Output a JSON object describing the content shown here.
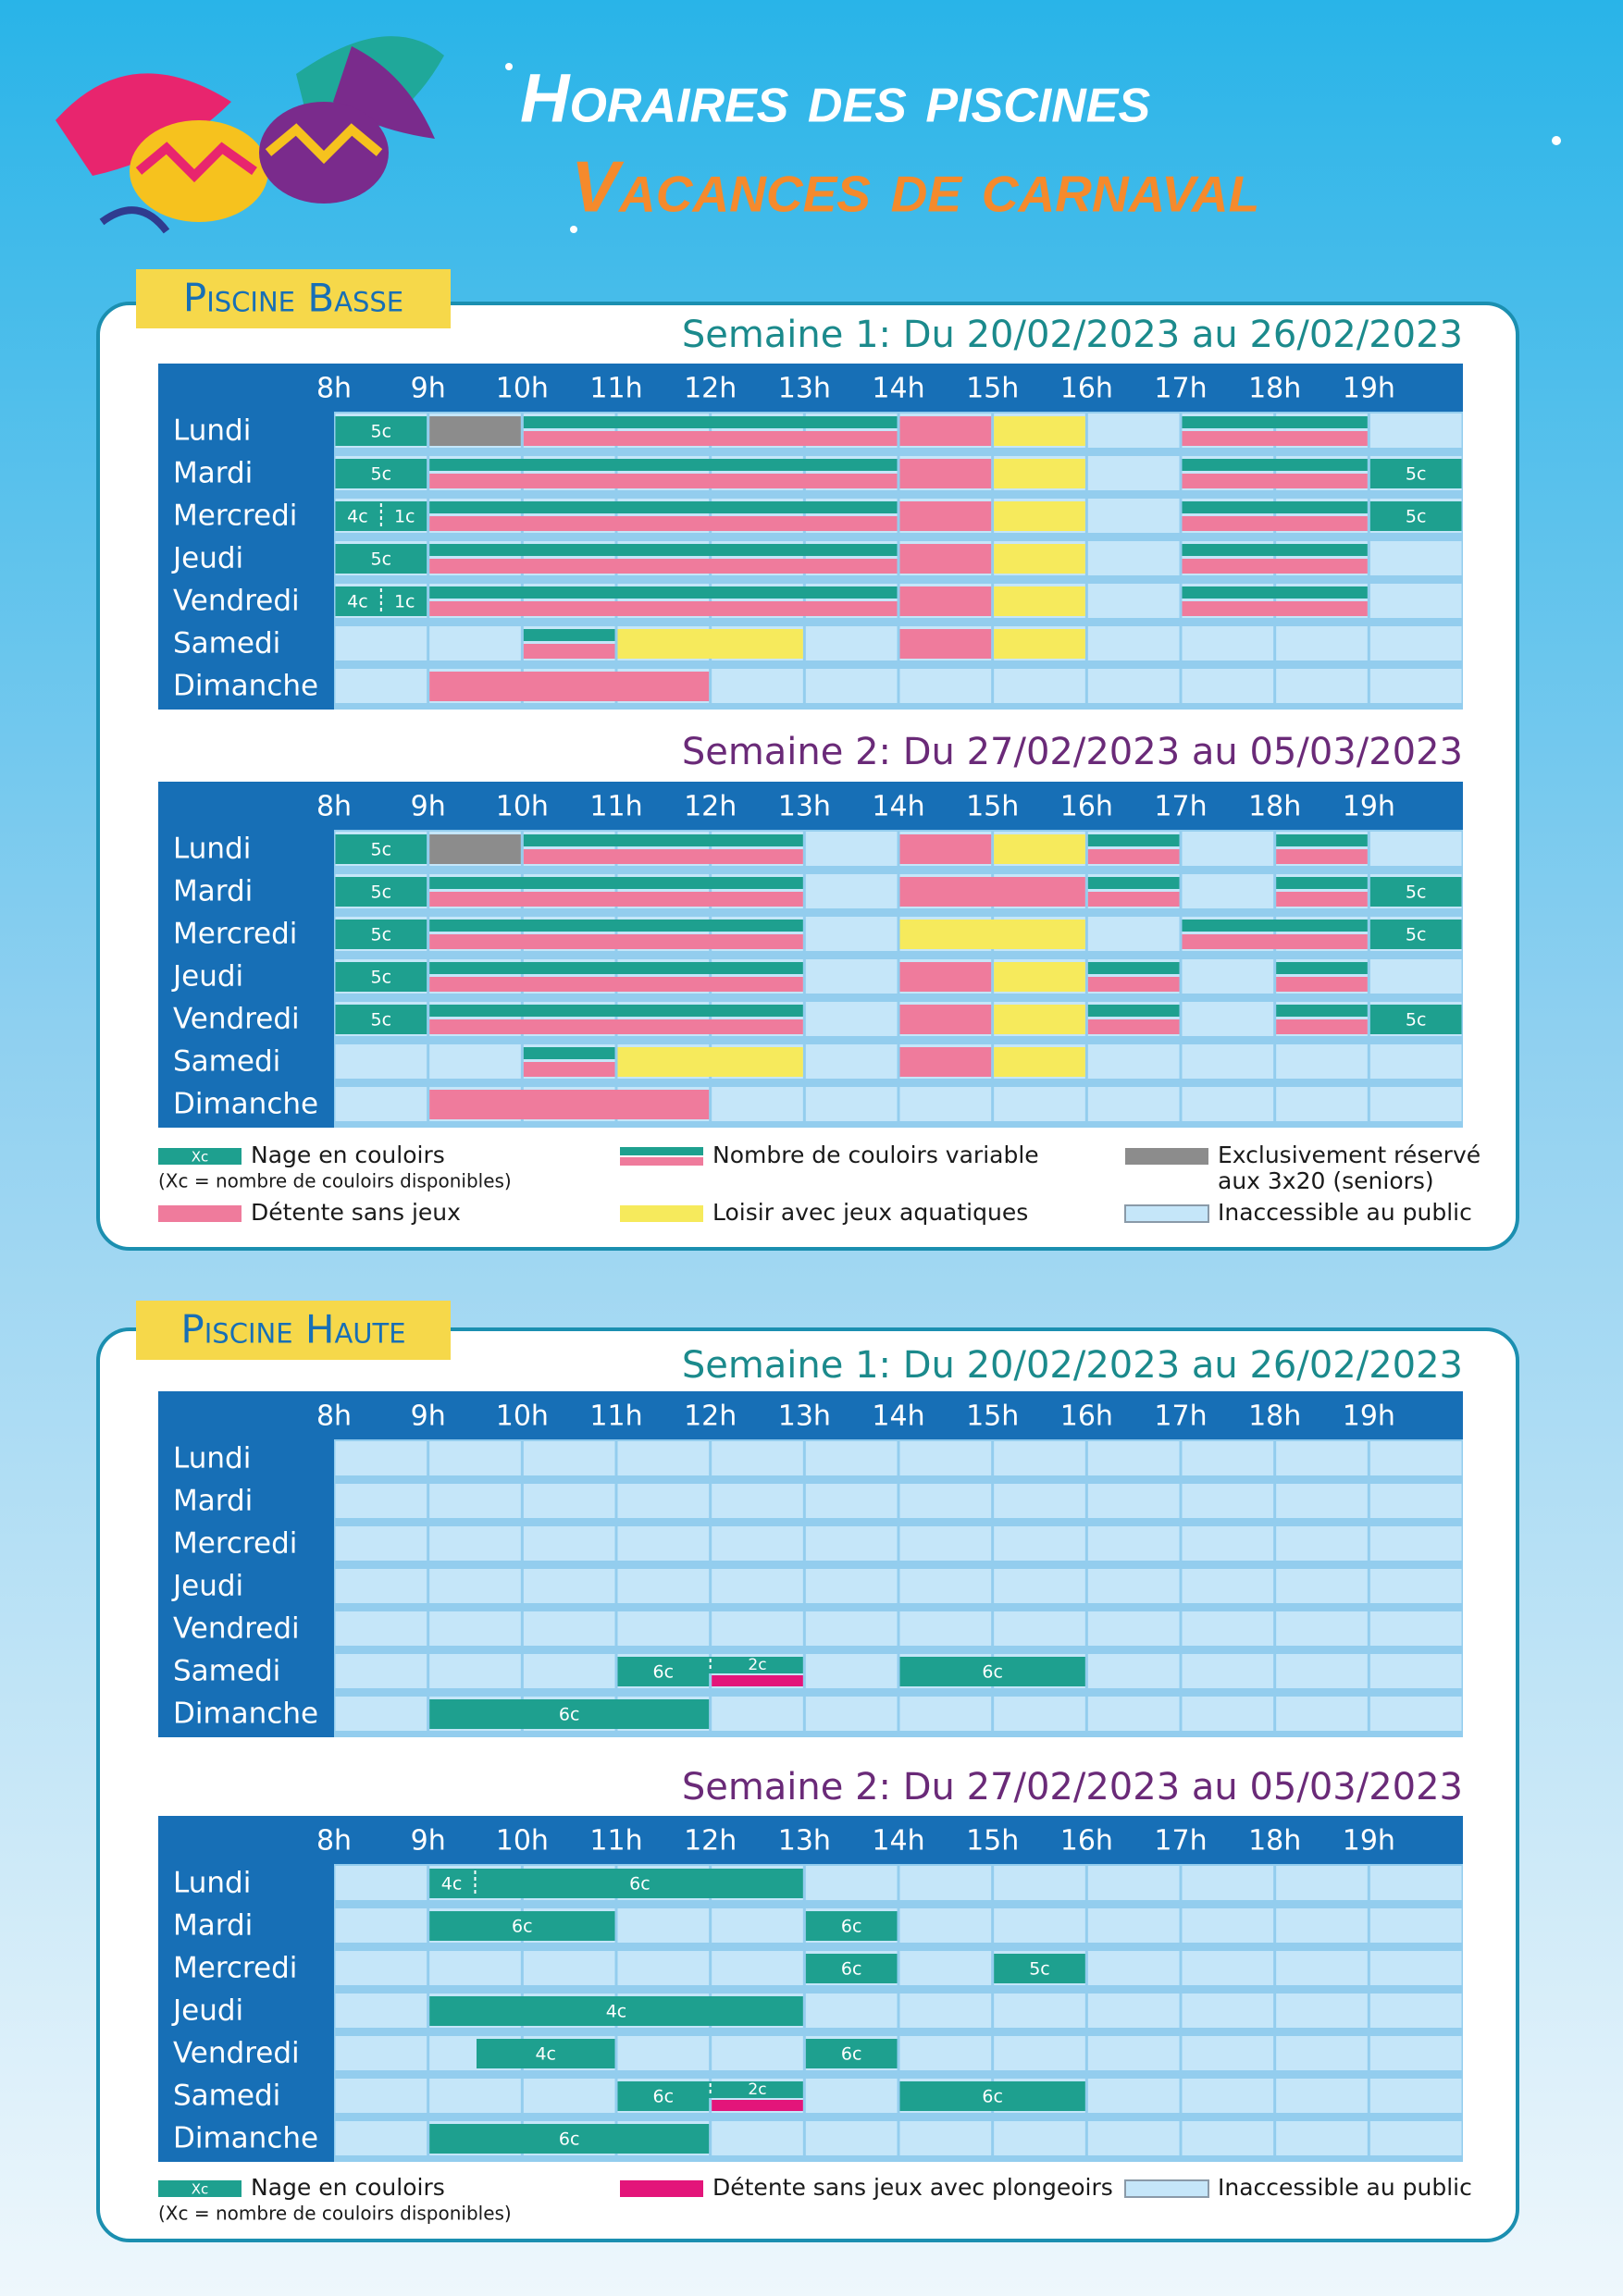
{
  "header": {
    "title": "Horaires des piscines",
    "subtitle": "Vacances de carnaval"
  },
  "pools": [
    {
      "name": "Piscine Basse",
      "legend": [
        {
          "type": "lanes",
          "label": "Nage en couloirs",
          "note": "(Xc = nombre de couloirs disponibles)",
          "swatch": "Xc",
          "color": "#1ea08f"
        },
        {
          "type": "variable",
          "label": "Nombre de couloirs variable",
          "colors": [
            "#1ea08f",
            "#ef7b9c"
          ]
        },
        {
          "type": "seniors",
          "label": "Exclusivement réservé",
          "note": "aux 3x20 (seniors)",
          "color": "#8c8c8c"
        },
        {
          "type": "relax",
          "label": "Détente sans jeux",
          "color": "#ef7b9c"
        },
        {
          "type": "leisure",
          "label": "Loisir avec jeux aquatiques",
          "color": "#f6ea5c"
        },
        {
          "type": "closed",
          "label": "Inaccessible au public",
          "color": "#c5e6f9"
        }
      ],
      "weeks": [
        {
          "heading": "Semaine 1: Du 20/02/2023 au 26/02/2023",
          "color": "#1b8a8c",
          "hours": [
            "8h",
            "9h",
            "10h",
            "11h",
            "12h",
            "13h",
            "14h",
            "15h",
            "16h",
            "17h",
            "18h",
            "19h"
          ],
          "days": [
            {
              "name": "Lundi",
              "slots": [
                {
                  "start": 8,
                  "end": 9,
                  "type": "lanes",
                  "label": "5c"
                },
                {
                  "start": 9,
                  "end": 10,
                  "type": "seniors"
                },
                {
                  "start": 10,
                  "end": 14,
                  "type": "variable"
                },
                {
                  "start": 14,
                  "end": 15,
                  "type": "relax"
                },
                {
                  "start": 15,
                  "end": 16,
                  "type": "leisure"
                },
                {
                  "start": 17,
                  "end": 19,
                  "type": "variable"
                }
              ]
            },
            {
              "name": "Mardi",
              "slots": [
                {
                  "start": 8,
                  "end": 9,
                  "type": "lanes",
                  "label": "5c"
                },
                {
                  "start": 9,
                  "end": 14,
                  "type": "variable"
                },
                {
                  "start": 14,
                  "end": 15,
                  "type": "relax"
                },
                {
                  "start": 15,
                  "end": 16,
                  "type": "leisure"
                },
                {
                  "start": 17,
                  "end": 19,
                  "type": "variable"
                },
                {
                  "start": 19,
                  "end": 20,
                  "type": "lanes",
                  "label": "5c"
                }
              ]
            },
            {
              "name": "Mercredi",
              "slots": [
                {
                  "start": 8,
                  "end": 8.5,
                  "type": "lanes",
                  "label": "4c"
                },
                {
                  "start": 8.5,
                  "end": 9,
                  "type": "lanes",
                  "label": "1c"
                },
                {
                  "start": 9,
                  "end": 14,
                  "type": "variable"
                },
                {
                  "start": 14,
                  "end": 15,
                  "type": "relax"
                },
                {
                  "start": 15,
                  "end": 16,
                  "type": "leisure"
                },
                {
                  "start": 17,
                  "end": 19,
                  "type": "variable"
                },
                {
                  "start": 19,
                  "end": 20,
                  "type": "lanes",
                  "label": "5c"
                }
              ]
            },
            {
              "name": "Jeudi",
              "slots": [
                {
                  "start": 8,
                  "end": 9,
                  "type": "lanes",
                  "label": "5c"
                },
                {
                  "start": 9,
                  "end": 14,
                  "type": "variable"
                },
                {
                  "start": 14,
                  "end": 15,
                  "type": "relax"
                },
                {
                  "start": 15,
                  "end": 16,
                  "type": "leisure"
                },
                {
                  "start": 17,
                  "end": 19,
                  "type": "variable"
                }
              ]
            },
            {
              "name": "Vendredi",
              "slots": [
                {
                  "start": 8,
                  "end": 8.5,
                  "type": "lanes",
                  "label": "4c"
                },
                {
                  "start": 8.5,
                  "end": 9,
                  "type": "lanes",
                  "label": "1c"
                },
                {
                  "start": 9,
                  "end": 14,
                  "type": "variable"
                },
                {
                  "start": 14,
                  "end": 15,
                  "type": "relax"
                },
                {
                  "start": 15,
                  "end": 16,
                  "type": "leisure"
                },
                {
                  "start": 17,
                  "end": 19,
                  "type": "variable"
                }
              ]
            },
            {
              "name": "Samedi",
              "slots": [
                {
                  "start": 10,
                  "end": 11,
                  "type": "variable"
                },
                {
                  "start": 11,
                  "end": 13,
                  "type": "leisure"
                },
                {
                  "start": 14,
                  "end": 15,
                  "type": "relax"
                },
                {
                  "start": 15,
                  "end": 16,
                  "type": "leisure"
                }
              ]
            },
            {
              "name": "Dimanche",
              "slots": [
                {
                  "start": 9,
                  "end": 12,
                  "type": "relax"
                }
              ]
            }
          ]
        },
        {
          "heading": "Semaine 2: Du 27/02/2023 au 05/03/2023",
          "color": "#6a2a78",
          "hours": [
            "8h",
            "9h",
            "10h",
            "11h",
            "12h",
            "13h",
            "14h",
            "15h",
            "16h",
            "17h",
            "18h",
            "19h"
          ],
          "days": [
            {
              "name": "Lundi",
              "slots": [
                {
                  "start": 8,
                  "end": 9,
                  "type": "lanes",
                  "label": "5c"
                },
                {
                  "start": 9,
                  "end": 10,
                  "type": "seniors"
                },
                {
                  "start": 10,
                  "end": 13,
                  "type": "variable"
                },
                {
                  "start": 14,
                  "end": 15,
                  "type": "relax"
                },
                {
                  "start": 15,
                  "end": 16,
                  "type": "leisure"
                },
                {
                  "start": 16,
                  "end": 17,
                  "type": "variable"
                },
                {
                  "start": 18,
                  "end": 19,
                  "type": "variable"
                }
              ]
            },
            {
              "name": "Mardi",
              "slots": [
                {
                  "start": 8,
                  "end": 9,
                  "type": "lanes",
                  "label": "5c"
                },
                {
                  "start": 9,
                  "end": 13,
                  "type": "variable"
                },
                {
                  "start": 14,
                  "end": 16,
                  "type": "relax"
                },
                {
                  "start": 16,
                  "end": 17,
                  "type": "variable"
                },
                {
                  "start": 18,
                  "end": 19,
                  "type": "variable"
                },
                {
                  "start": 19,
                  "end": 20,
                  "type": "lanes",
                  "label": "5c"
                }
              ]
            },
            {
              "name": "Mercredi",
              "slots": [
                {
                  "start": 8,
                  "end": 9,
                  "type": "lanes",
                  "label": "5c"
                },
                {
                  "start": 9,
                  "end": 13,
                  "type": "variable"
                },
                {
                  "start": 14,
                  "end": 16,
                  "type": "leisure"
                },
                {
                  "start": 17,
                  "end": 19,
                  "type": "variable"
                },
                {
                  "start": 19,
                  "end": 20,
                  "type": "lanes",
                  "label": "5c"
                }
              ]
            },
            {
              "name": "Jeudi",
              "slots": [
                {
                  "start": 8,
                  "end": 9,
                  "type": "lanes",
                  "label": "5c"
                },
                {
                  "start": 9,
                  "end": 13,
                  "type": "variable"
                },
                {
                  "start": 14,
                  "end": 15,
                  "type": "relax"
                },
                {
                  "start": 15,
                  "end": 16,
                  "type": "leisure"
                },
                {
                  "start": 16,
                  "end": 17,
                  "type": "variable"
                },
                {
                  "start": 18,
                  "end": 19,
                  "type": "variable"
                }
              ]
            },
            {
              "name": "Vendredi",
              "slots": [
                {
                  "start": 8,
                  "end": 9,
                  "type": "lanes",
                  "label": "5c"
                },
                {
                  "start": 9,
                  "end": 13,
                  "type": "variable"
                },
                {
                  "start": 14,
                  "end": 15,
                  "type": "relax"
                },
                {
                  "start": 15,
                  "end": 16,
                  "type": "leisure"
                },
                {
                  "start": 16,
                  "end": 17,
                  "type": "variable"
                },
                {
                  "start": 18,
                  "end": 19,
                  "type": "variable"
                },
                {
                  "start": 19,
                  "end": 20,
                  "type": "lanes",
                  "label": "5c"
                }
              ]
            },
            {
              "name": "Samedi",
              "slots": [
                {
                  "start": 10,
                  "end": 11,
                  "type": "variable"
                },
                {
                  "start": 11,
                  "end": 13,
                  "type": "leisure"
                },
                {
                  "start": 14,
                  "end": 15,
                  "type": "relax"
                },
                {
                  "start": 15,
                  "end": 16,
                  "type": "leisure"
                }
              ]
            },
            {
              "name": "Dimanche",
              "slots": [
                {
                  "start": 9,
                  "end": 12,
                  "type": "relax"
                }
              ]
            }
          ]
        }
      ]
    },
    {
      "name": "Piscine Haute",
      "legend": [
        {
          "type": "lanes",
          "label": "Nage en couloirs",
          "note": "(Xc = nombre de couloirs disponibles)",
          "swatch": "Xc",
          "color": "#1ea08f"
        },
        {
          "type": "diving",
          "label": "Détente sans jeux avec plongeoirs",
          "color": "#e3157a"
        },
        {
          "type": "closed",
          "label": "Inaccessible au public",
          "color": "#c5e6f9"
        }
      ],
      "weeks": [
        {
          "heading": "Semaine 1: Du 20/02/2023 au 26/02/2023",
          "color": "#1b8a8c",
          "hours": [
            "8h",
            "9h",
            "10h",
            "11h",
            "12h",
            "13h",
            "14h",
            "15h",
            "16h",
            "17h",
            "18h",
            "19h"
          ],
          "days": [
            {
              "name": "Lundi",
              "slots": []
            },
            {
              "name": "Mardi",
              "slots": []
            },
            {
              "name": "Mercredi",
              "slots": []
            },
            {
              "name": "Jeudi",
              "slots": []
            },
            {
              "name": "Vendredi",
              "slots": []
            },
            {
              "name": "Samedi",
              "slots": [
                {
                  "start": 11,
                  "end": 12,
                  "type": "lanes",
                  "label": "6c"
                },
                {
                  "start": 12,
                  "end": 13,
                  "type": "lanes",
                  "label": "2c",
                  "with": "diving"
                },
                {
                  "start": 14,
                  "end": 16,
                  "type": "lanes",
                  "label": "6c"
                }
              ]
            },
            {
              "name": "Dimanche",
              "slots": [
                {
                  "start": 9,
                  "end": 12,
                  "type": "lanes",
                  "label": "6c"
                }
              ]
            }
          ]
        },
        {
          "heading": "Semaine 2: Du 27/02/2023 au 05/03/2023",
          "color": "#6a2a78",
          "hours": [
            "8h",
            "9h",
            "10h",
            "11h",
            "12h",
            "13h",
            "14h",
            "15h",
            "16h",
            "17h",
            "18h",
            "19h"
          ],
          "days": [
            {
              "name": "Lundi",
              "slots": [
                {
                  "start": 9,
                  "end": 9.5,
                  "type": "lanes",
                  "label": "4c"
                },
                {
                  "start": 9.5,
                  "end": 13,
                  "type": "lanes",
                  "label": "6c"
                }
              ]
            },
            {
              "name": "Mardi",
              "slots": [
                {
                  "start": 9,
                  "end": 11,
                  "type": "lanes",
                  "label": "6c"
                },
                {
                  "start": 13,
                  "end": 14,
                  "type": "lanes",
                  "label": "6c"
                }
              ]
            },
            {
              "name": "Mercredi",
              "slots": [
                {
                  "start": 13,
                  "end": 14,
                  "type": "lanes",
                  "label": "6c"
                },
                {
                  "start": 15,
                  "end": 16,
                  "type": "lanes",
                  "label": "5c"
                }
              ]
            },
            {
              "name": "Jeudi",
              "slots": [
                {
                  "start": 9,
                  "end": 13,
                  "type": "lanes",
                  "label": "4c"
                }
              ]
            },
            {
              "name": "Vendredi",
              "slots": [
                {
                  "start": 9.5,
                  "end": 11,
                  "type": "lanes",
                  "label": "4c"
                },
                {
                  "start": 13,
                  "end": 14,
                  "type": "lanes",
                  "label": "6c"
                }
              ]
            },
            {
              "name": "Samedi",
              "slots": [
                {
                  "start": 11,
                  "end": 12,
                  "type": "lanes",
                  "label": "6c"
                },
                {
                  "start": 12,
                  "end": 13,
                  "type": "lanes",
                  "label": "2c",
                  "with": "diving"
                },
                {
                  "start": 14,
                  "end": 16,
                  "type": "lanes",
                  "label": "6c"
                }
              ]
            },
            {
              "name": "Dimanche",
              "slots": [
                {
                  "start": 9,
                  "end": 12,
                  "type": "lanes",
                  "label": "6c"
                }
              ]
            }
          ]
        }
      ]
    }
  ]
}
